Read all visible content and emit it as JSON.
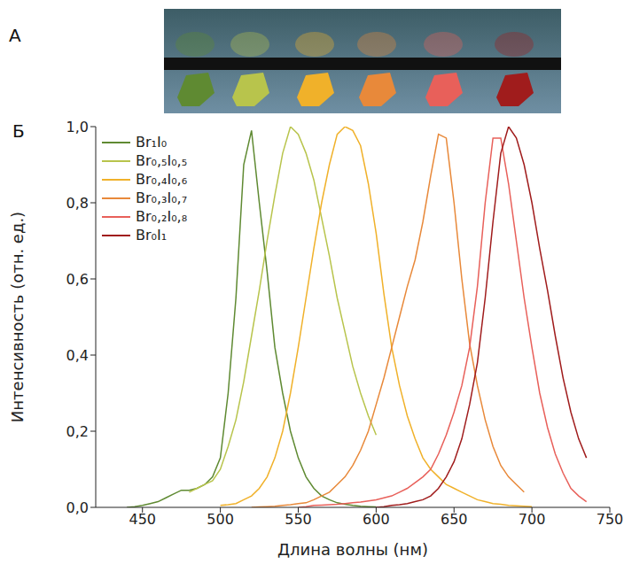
{
  "panel_labels": [
    "А",
    "Б"
  ],
  "chart_data": {
    "type": "line",
    "x_label": "Длина волны (нм)",
    "y_label": "Интенсивность (отн. ед.)",
    "xlim": [
      420,
      750
    ],
    "xticks": [
      450,
      500,
      550,
      600,
      650,
      700,
      750
    ],
    "ylim": [
      0,
      1
    ],
    "yticks": [
      {
        "value": 0,
        "label": "0,0"
      },
      {
        "value": 0.2,
        "label": "0,2"
      },
      {
        "value": 0.4,
        "label": "0,4"
      },
      {
        "value": 0.6,
        "label": "0,6"
      },
      {
        "value": 0.8,
        "label": "0,8"
      },
      {
        "value": 1,
        "label": "1,0"
      }
    ],
    "grid": false,
    "legend": "upper left",
    "series": [
      {
        "name": "Br₁I₀",
        "color": "#5f8a32",
        "x": [
          440,
          445,
          450,
          455,
          460,
          465,
          470,
          475,
          480,
          485,
          490,
          495,
          500,
          505,
          510,
          515,
          520,
          525,
          530,
          535,
          540,
          545,
          550,
          555,
          560,
          565,
          570,
          575,
          580,
          585,
          590,
          595,
          600
        ],
        "values": [
          0,
          0.002,
          0.005,
          0.01,
          0.015,
          0.025,
          0.035,
          0.045,
          0.045,
          0.05,
          0.06,
          0.08,
          0.13,
          0.3,
          0.55,
          0.9,
          0.99,
          0.8,
          0.62,
          0.42,
          0.3,
          0.2,
          0.13,
          0.08,
          0.05,
          0.03,
          0.02,
          0.012,
          0.008,
          0.005,
          0.003,
          0.002,
          0.001
        ]
      },
      {
        "name": "Br₀,₅I₀,₅",
        "color": "#b8c44c",
        "x": [
          480,
          485,
          490,
          495,
          500,
          505,
          510,
          515,
          520,
          525,
          530,
          535,
          540,
          545,
          550,
          555,
          560,
          565,
          570,
          575,
          580,
          585,
          590,
          595,
          600
        ],
        "values": [
          0.04,
          0.05,
          0.06,
          0.07,
          0.1,
          0.16,
          0.23,
          0.33,
          0.45,
          0.57,
          0.7,
          0.82,
          0.93,
          1,
          0.98,
          0.93,
          0.86,
          0.76,
          0.66,
          0.55,
          0.46,
          0.37,
          0.3,
          0.24,
          0.19
        ]
      },
      {
        "name": "Br₀,₄I₀,₆",
        "color": "#f0b12a",
        "x": [
          500,
          505,
          510,
          515,
          520,
          525,
          530,
          535,
          540,
          545,
          550,
          555,
          560,
          565,
          570,
          575,
          580,
          585,
          590,
          595,
          600,
          605,
          610,
          615,
          620,
          625,
          630,
          635,
          640,
          645,
          650,
          655,
          660,
          665,
          670,
          675,
          680,
          685,
          690,
          695,
          700
        ],
        "values": [
          0.005,
          0.007,
          0.01,
          0.02,
          0.03,
          0.05,
          0.08,
          0.13,
          0.2,
          0.3,
          0.42,
          0.55,
          0.68,
          0.8,
          0.9,
          0.98,
          1,
          0.99,
          0.95,
          0.85,
          0.72,
          0.56,
          0.42,
          0.32,
          0.24,
          0.18,
          0.13,
          0.1,
          0.08,
          0.06,
          0.05,
          0.04,
          0.03,
          0.02,
          0.015,
          0.01,
          0.008,
          0.005,
          0.004,
          0.003,
          0.002
        ]
      },
      {
        "name": "Br₀,₃I₀,₇",
        "color": "#e8893a",
        "x": [
          520,
          525,
          530,
          535,
          540,
          545,
          550,
          555,
          560,
          565,
          570,
          575,
          580,
          585,
          590,
          595,
          600,
          605,
          610,
          615,
          620,
          625,
          630,
          635,
          640,
          645,
          650,
          655,
          660,
          665,
          670,
          675,
          680,
          685,
          690,
          695
        ],
        "values": [
          0,
          0.001,
          0.002,
          0.003,
          0.005,
          0.007,
          0.01,
          0.012,
          0.02,
          0.03,
          0.04,
          0.06,
          0.08,
          0.11,
          0.15,
          0.2,
          0.27,
          0.34,
          0.42,
          0.5,
          0.58,
          0.65,
          0.75,
          0.87,
          0.98,
          0.97,
          0.8,
          0.6,
          0.43,
          0.32,
          0.23,
          0.16,
          0.11,
          0.08,
          0.06,
          0.04
        ]
      },
      {
        "name": "Br₀,₂I₀,₈",
        "color": "#e8605a",
        "x": [
          550,
          555,
          560,
          565,
          570,
          575,
          580,
          585,
          590,
          595,
          600,
          605,
          610,
          615,
          620,
          625,
          630,
          635,
          640,
          645,
          650,
          655,
          660,
          665,
          670,
          675,
          680,
          685,
          690,
          695,
          700,
          705,
          710,
          715,
          720,
          725,
          730,
          735
        ],
        "values": [
          0,
          0.002,
          0.005,
          0.006,
          0.007,
          0.008,
          0.01,
          0.012,
          0.014,
          0.017,
          0.02,
          0.025,
          0.03,
          0.04,
          0.05,
          0.065,
          0.08,
          0.1,
          0.14,
          0.19,
          0.25,
          0.32,
          0.42,
          0.58,
          0.8,
          0.97,
          0.97,
          0.85,
          0.7,
          0.55,
          0.42,
          0.3,
          0.21,
          0.14,
          0.09,
          0.05,
          0.03,
          0.015
        ]
      },
      {
        "name": "Br₀I₁",
        "color": "#a01c1c",
        "x": [
          600,
          605,
          610,
          615,
          620,
          625,
          630,
          635,
          640,
          645,
          650,
          655,
          660,
          665,
          670,
          675,
          680,
          685,
          690,
          695,
          700,
          705,
          710,
          715,
          720,
          725,
          730,
          735
        ],
        "values": [
          0,
          0.002,
          0.005,
          0.007,
          0.01,
          0.015,
          0.02,
          0.03,
          0.05,
          0.08,
          0.12,
          0.18,
          0.27,
          0.38,
          0.55,
          0.75,
          0.93,
          1,
          0.97,
          0.9,
          0.8,
          0.68,
          0.57,
          0.45,
          0.34,
          0.25,
          0.18,
          0.13
        ]
      }
    ]
  }
}
